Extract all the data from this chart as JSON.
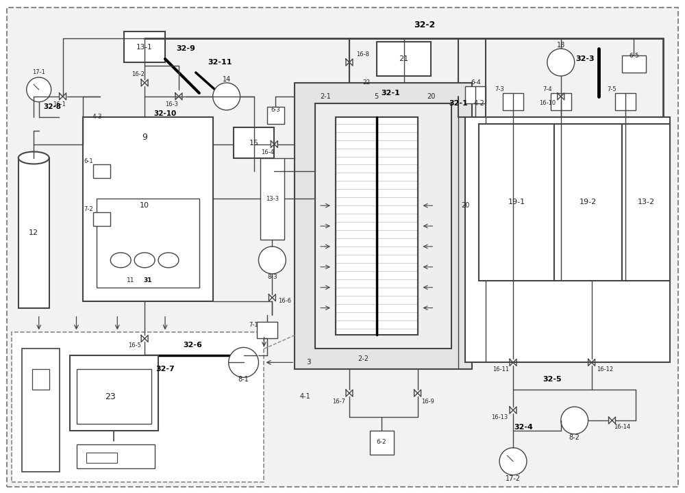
{
  "bg_color": "#f0f0f0",
  "lc": "#444444",
  "bold_lc": "#000000",
  "white": "#ffffff",
  "gray_fill": "#d8d8d8"
}
